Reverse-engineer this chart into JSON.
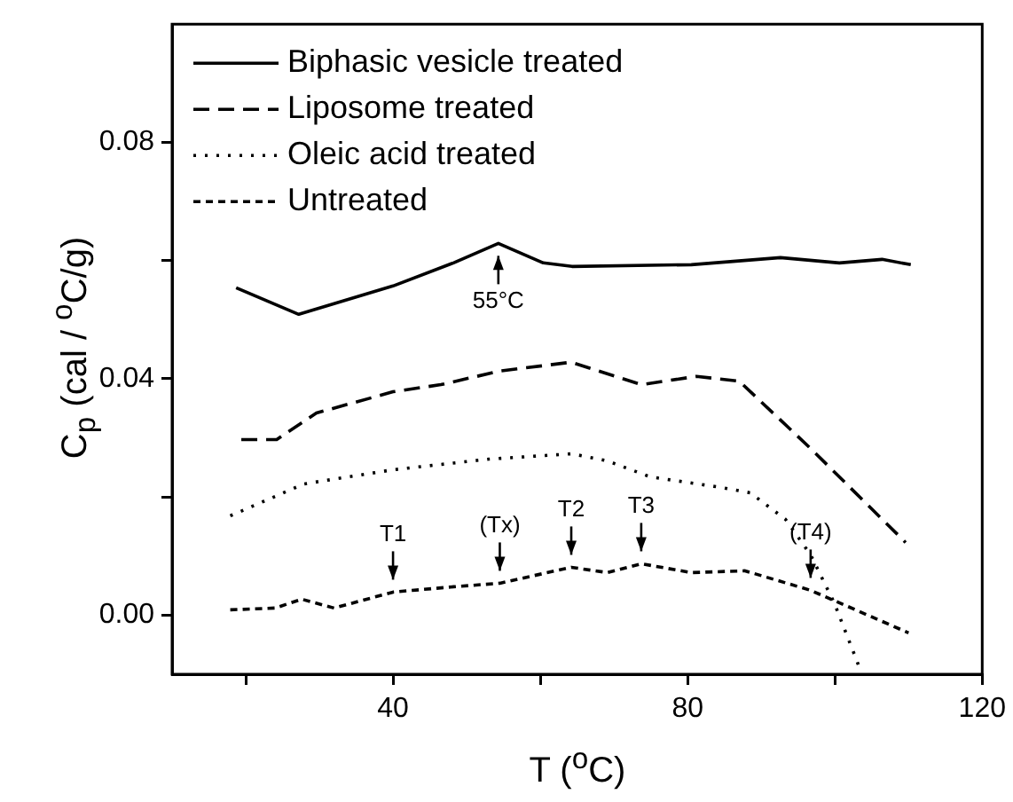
{
  "chart_data": {
    "type": "line",
    "xlabel": "T ($^{o}$C)",
    "ylabel": "C$_{p}$ (cal / $^{o}$C/g)",
    "xlim": [
      10,
      120
    ],
    "xticks": [
      {
        "value": 20,
        "label": null
      },
      40,
      {
        "value": 60,
        "label": null
      },
      80,
      {
        "value": 100,
        "label": null
      },
      120
    ],
    "ylim": [
      -0.01,
      0.1
    ],
    "yticks": [
      {
        "value": 0,
        "label": "0.00"
      },
      {
        "value": 0.02,
        "label": null
      },
      {
        "value": 0.04,
        "label": "0.04"
      },
      {
        "value": 0.06,
        "label": null
      },
      {
        "value": 0.08,
        "label": "0.08"
      }
    ],
    "grid": false,
    "legend": "top left",
    "marker": "none",
    "series": [
      {
        "name": "Biphasic vesicle treated",
        "color": "#000000",
        "line_style": "solid",
        "x": [
          18.7,
          27.2,
          40,
          48.2,
          54.3,
          60.4,
          64.3,
          80.5,
          92.6,
          100.6,
          106.4,
          110.3
        ],
        "values": [
          0.0554,
          0.0509,
          0.0557,
          0.0596,
          0.0629,
          0.0596,
          0.059,
          0.0593,
          0.0605,
          0.0596,
          0.0602,
          0.0593
        ]
      },
      {
        "name": "Liposome treated",
        "color": "#000000",
        "line_style": "dashed",
        "x": [
          19.4,
          24.2,
          29.6,
          40,
          46.5,
          54.5,
          64.2,
          73.7,
          81.2,
          87,
          96.7,
          109.6
        ],
        "values": [
          0.0297,
          0.0297,
          0.0342,
          0.0378,
          0.039,
          0.0413,
          0.0428,
          0.039,
          0.0404,
          0.0396,
          0.0282,
          0.0123
        ]
      },
      {
        "name": "Oleic acid treated",
        "color": "#000000",
        "line_style": "dotted",
        "x": [
          17.9,
          27.9,
          40,
          53,
          64.3,
          69.1,
          74.9,
          84.6,
          88.5,
          93.3,
          96.7,
          99.9,
          103,
          103.5
        ],
        "values": [
          0.0168,
          0.0222,
          0.0246,
          0.0264,
          0.0273,
          0.0261,
          0.0234,
          0.0216,
          0.0207,
          0.0162,
          0.0102,
          0.0021,
          -0.0078,
          -0.0095
        ]
      },
      {
        "name": "Untreated",
        "color": "#000000",
        "line_style": "dashed",
        "x": [
          17.9,
          24,
          27.6,
          32,
          40,
          48.2,
          54.5,
          64.2,
          69.1,
          73.7,
          80.5,
          87.8,
          96.7,
          110
        ],
        "values": [
          0.0009,
          0.0012,
          0.0027,
          0.0012,
          0.0039,
          0.0048,
          0.0054,
          0.0081,
          0.0072,
          0.0087,
          0.0072,
          0.0075,
          0.0042,
          -0.003
        ]
      }
    ],
    "annotations": [
      {
        "text": "55°C",
        "x": 54.3,
        "y": 0.0629
      },
      {
        "text": "T1",
        "x": 40,
        "y": 0.0039
      },
      {
        "text": "(Tx)",
        "x": 54.5,
        "y": 0.0054
      },
      {
        "text": "T2",
        "x": 64.2,
        "y": 0.0081
      },
      {
        "text": "T3",
        "x": 73.7,
        "y": 0.0087
      },
      {
        "text": "(T4)",
        "x": 96.7,
        "y": 0.0042
      }
    ]
  }
}
